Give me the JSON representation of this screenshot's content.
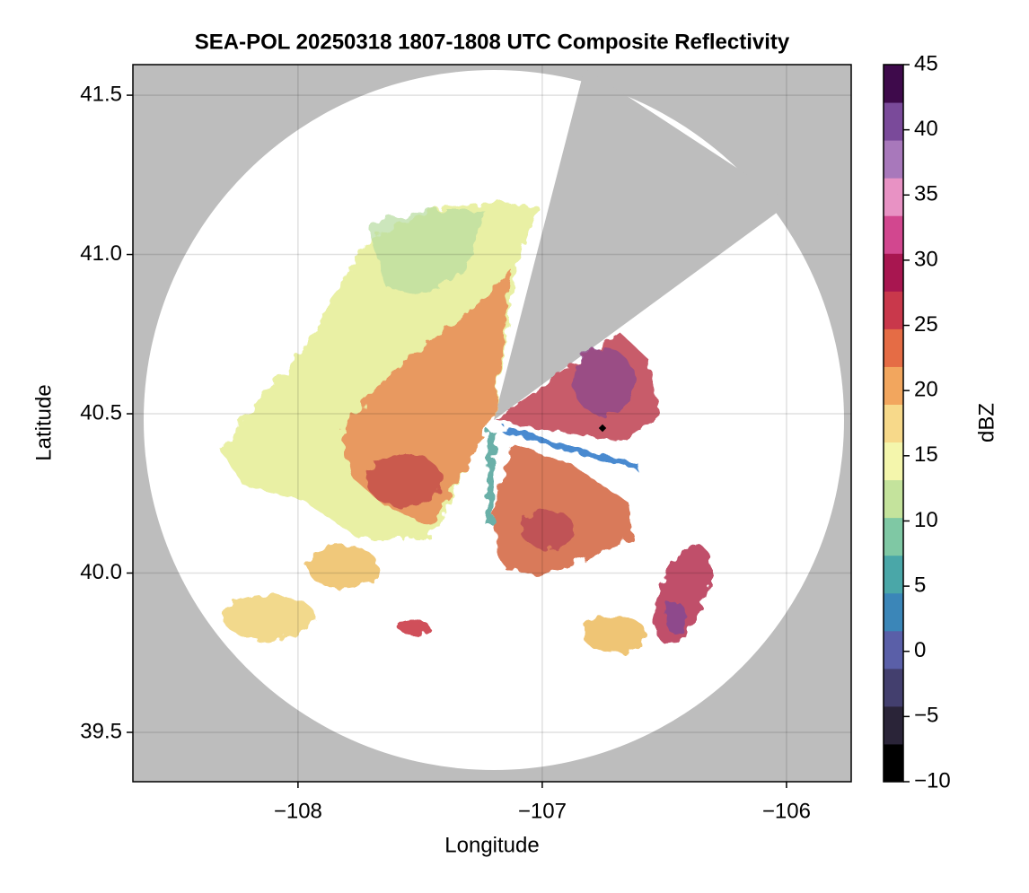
{
  "chart_data": {
    "type": "radar",
    "title": "SEA-POL 20250318 1807-1808 UTC Composite Reflectivity",
    "xlabel": "Longitude",
    "ylabel": "Latitude",
    "xlim": [
      -108.676,
      -105.735
    ],
    "ylim": [
      39.345,
      41.596
    ],
    "xticks": [
      {
        "value": -108,
        "label": "−108"
      },
      {
        "value": -107,
        "label": "−107"
      },
      {
        "value": -106,
        "label": "−106"
      }
    ],
    "yticks": [
      39.5,
      {
        "value": 40.0,
        "label": "40.0"
      },
      40.5,
      {
        "value": 41.0,
        "label": "41.0"
      },
      41.5
    ],
    "grid": true,
    "colorbar": {
      "label": "dBZ",
      "range": [
        -10,
        45
      ],
      "ticks": [
        {
          "value": -10,
          "label": "−10"
        },
        {
          "value": -5,
          "label": "−5"
        },
        0,
        5,
        10,
        15,
        20,
        25,
        30,
        35,
        40,
        45
      ],
      "colors": [
        "#000000",
        "#2a2438",
        "#433f6e",
        "#5a5fa8",
        "#3b86b8",
        "#4aa7a8",
        "#7fc8a4",
        "#c4e39c",
        "#f4f6ac",
        "#f7d98a",
        "#f2a65e",
        "#e56c45",
        "#c9384b",
        "#a81650",
        "#d2478f",
        "#e892c4",
        "#a878bb",
        "#7a4a9a",
        "#3e0a4b"
      ]
    }
  }
}
